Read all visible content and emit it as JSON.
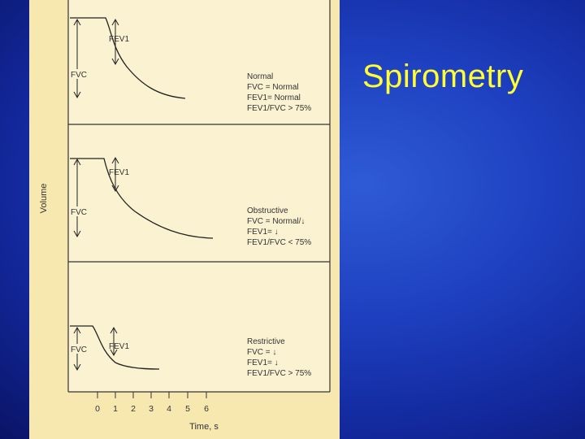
{
  "slide": {
    "title": "Spirometry"
  },
  "figure": {
    "y_axis_label": "Volume",
    "x_axis_label": "Time, s",
    "x_ticks": [
      "0",
      "1",
      "2",
      "3",
      "4",
      "5",
      "6"
    ],
    "panels": [
      {
        "fev_label": "FEV1",
        "fvc_label": "FVC",
        "lines": [
          "Normal",
          "FVC = Normal",
          "FEV1= Normal",
          "FEV1/FVC > 75%"
        ]
      },
      {
        "fev_label": "FEV1",
        "fvc_label": "FVC",
        "lines": [
          "Obstructive",
          "FVC = Normal/↓",
          "FEV1= ↓",
          "FEV1/FVC < 75%"
        ]
      },
      {
        "fev_label": "FEV1",
        "fvc_label": "FVC",
        "lines": [
          "Restrictive",
          "FVC = ↓",
          "FEV1= ↓",
          "FEV1/FVC > 75%"
        ]
      }
    ]
  }
}
